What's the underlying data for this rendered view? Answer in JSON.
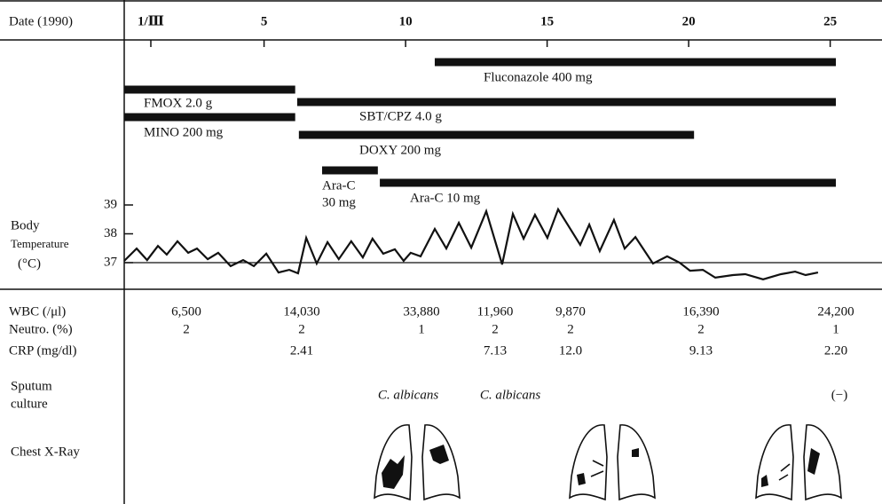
{
  "header": {
    "date_label": "Date (1990)"
  },
  "chart_data": {
    "type": "line",
    "y_label_lines": [
      "Body",
      "Temperature",
      "(°C)"
    ],
    "xlim": [
      0.06,
      26.83
    ],
    "xticks": [
      {
        "value": 1,
        "label": "1/Ⅲ"
      },
      5,
      10,
      15,
      20,
      25
    ],
    "ylim": [
      36,
      39.5
    ],
    "yticks": [
      37,
      38,
      39
    ],
    "reference_line": 37,
    "color": "#111111",
    "x": [
      0.06,
      0.5,
      0.87,
      1.25,
      1.56,
      1.94,
      2.32,
      2.63,
      3.01,
      3.38,
      3.82,
      4.26,
      4.64,
      5.08,
      5.51,
      5.89,
      6.2,
      6.49,
      6.86,
      7.24,
      7.64,
      8.08,
      8.49,
      8.83,
      9.21,
      9.62,
      9.93,
      10.18,
      10.53,
      11.03,
      11.44,
      11.88,
      12.32,
      12.85,
      13.41,
      13.79,
      14.17,
      14.57,
      15.01,
      15.39,
      16.17,
      16.49,
      16.86,
      17.36,
      17.74,
      18.12,
      18.74,
      19.24,
      19.68,
      20.05,
      20.5,
      20.94,
      21.56,
      22.0,
      22.63,
      23.26,
      23.76,
      24.13,
      24.57
    ],
    "values": [
      37.06,
      37.49,
      37.09,
      37.58,
      37.28,
      37.74,
      37.34,
      37.49,
      37.12,
      37.34,
      36.88,
      37.09,
      36.88,
      37.31,
      36.66,
      36.75,
      36.63,
      37.86,
      36.97,
      37.71,
      37.12,
      37.74,
      37.18,
      37.83,
      37.31,
      37.46,
      37.06,
      37.34,
      37.22,
      38.17,
      37.49,
      38.38,
      37.52,
      38.78,
      36.94,
      38.69,
      37.83,
      38.66,
      37.86,
      38.85,
      37.62,
      38.32,
      37.4,
      38.48,
      37.49,
      37.89,
      36.97,
      37.22,
      37.0,
      36.72,
      36.75,
      36.48,
      36.57,
      36.6,
      36.42,
      36.6,
      36.69,
      36.57,
      36.66
    ],
    "treatments": [
      {
        "label_lines": [
          "Fluconazole 400 mg"
        ],
        "start": 11.03,
        "end": 25.2
      },
      {
        "label_lines": [
          "FMOX 2.0 g"
        ],
        "start": 0.06,
        "end": 6.1
      },
      {
        "label_lines": [
          "SBT/CPZ 4.0 g"
        ],
        "start": 6.17,
        "end": 25.2
      },
      {
        "label_lines": [
          "MINO 200 mg"
        ],
        "start": 0.06,
        "end": 6.1
      },
      {
        "label_lines": [
          "DOXY 200 mg"
        ],
        "start": 6.23,
        "end": 20.19
      },
      {
        "label_lines": [
          "Ara-C",
          "30 mg"
        ],
        "start": 7.05,
        "end": 9.02
      },
      {
        "label_lines": [
          "Ara-C 10 mg"
        ],
        "start": 9.09,
        "end": 25.2
      }
    ]
  },
  "labs": {
    "rows": [
      {
        "label": "WBC (/μl)",
        "values": [
          "6,500",
          "14,030",
          "33,880",
          "11,960",
          "9,870",
          "16,390",
          "24,200"
        ]
      },
      {
        "label": "Neutro. (%)",
        "values": [
          "2",
          "2",
          "1",
          "2",
          "2",
          "2",
          "1"
        ]
      },
      {
        "label": "CRP (mg/dl)",
        "values": [
          null,
          "2.41",
          null,
          "7.13",
          "12.0",
          "9.13",
          "2.20"
        ]
      }
    ]
  },
  "sputum": {
    "label_lines": [
      "Sputum",
      "culture"
    ],
    "results": [
      "C. albicans",
      "C. albicans",
      "(−)"
    ]
  },
  "chest_xray": {
    "label": "Chest X-Ray"
  }
}
